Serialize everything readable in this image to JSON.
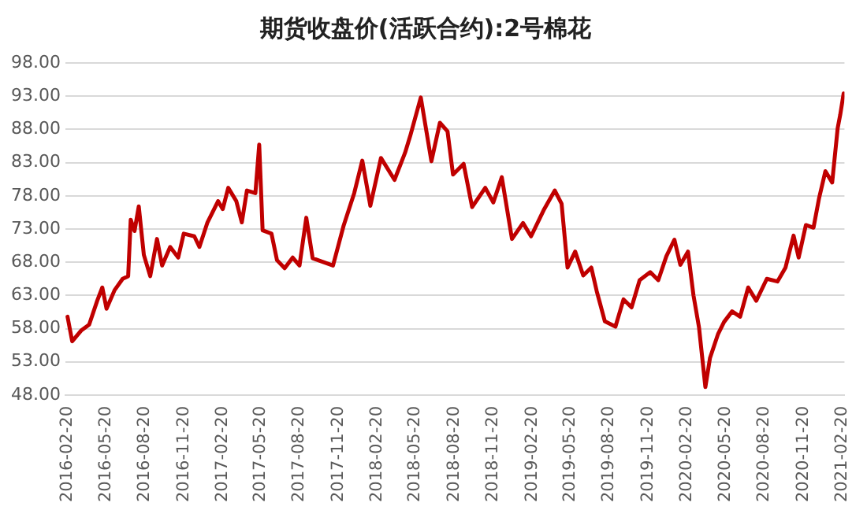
{
  "chart_data": {
    "type": "line",
    "title": "期货收盘价(活跃合约):2号棉花",
    "x": [
      "2016-02-20",
      "2016-03-02",
      "2016-03-23",
      "2016-04-11",
      "2016-04-30",
      "2016-05-12",
      "2016-05-22",
      "2016-06-10",
      "2016-06-29",
      "2016-07-12",
      "2016-07-18",
      "2016-07-27",
      "2016-08-06",
      "2016-08-18",
      "2016-09-02",
      "2016-09-18",
      "2016-09-30",
      "2016-10-19",
      "2016-11-07",
      "2016-11-20",
      "2016-12-15",
      "2016-12-27",
      "2017-01-15",
      "2017-02-09",
      "2017-02-20",
      "2017-03-05",
      "2017-03-24",
      "2017-04-06",
      "2017-04-18",
      "2017-05-08",
      "2017-05-17",
      "2017-05-25",
      "2017-06-15",
      "2017-06-28",
      "2017-07-16",
      "2017-08-04",
      "2017-08-20",
      "2017-09-05",
      "2017-09-20",
      "2017-11-07",
      "2017-12-02",
      "2017-12-27",
      "2018-01-15",
      "2018-02-03",
      "2018-02-28",
      "2018-04-01",
      "2018-04-26",
      "2018-05-08",
      "2018-06-02",
      "2018-06-27",
      "2018-07-17",
      "2018-08-04",
      "2018-08-17",
      "2018-09-11",
      "2018-10-01",
      "2018-11-01",
      "2018-11-20",
      "2018-12-10",
      "2019-01-03",
      "2019-01-29",
      "2019-02-17",
      "2019-03-20",
      "2019-04-14",
      "2019-04-30",
      "2019-05-14",
      "2019-06-01",
      "2019-06-20",
      "2019-07-09",
      "2019-07-22",
      "2019-08-10",
      "2019-09-04",
      "2019-09-23",
      "2019-10-12",
      "2019-10-31",
      "2019-11-25",
      "2019-12-14",
      "2020-01-02",
      "2020-01-21",
      "2020-02-04",
      "2020-02-22",
      "2020-03-06",
      "2020-03-19",
      "2020-04-03",
      "2020-04-14",
      "2020-05-03",
      "2020-05-17",
      "2020-06-05",
      "2020-06-24",
      "2020-07-13",
      "2020-08-01",
      "2020-08-26",
      "2020-09-20",
      "2020-10-09",
      "2020-10-28",
      "2020-11-09",
      "2020-11-26",
      "2020-12-14",
      "2020-12-27",
      "2021-01-11",
      "2021-01-27",
      "2021-02-09",
      "2021-02-15",
      "2021-02-23"
    ],
    "series": [
      {
        "color": "#c00000",
        "values": [
          59.8,
          56.1,
          57.7,
          58.6,
          62.2,
          64.2,
          61,
          63.8,
          65.5,
          65.9,
          74.4,
          72.7,
          76.4,
          69.1,
          65.9,
          71.5,
          67.5,
          70.3,
          68.7,
          72.3,
          71.9,
          70.3,
          74,
          77.2,
          76,
          79.2,
          77.2,
          74,
          78.8,
          78.4,
          85.7,
          72.8,
          72.3,
          68.3,
          67.1,
          68.7,
          67.5,
          74.7,
          68.6,
          67.5,
          73.5,
          78.4,
          83.3,
          76.5,
          83.7,
          80.4,
          84.5,
          87,
          92.8,
          83.2,
          89,
          87.7,
          81.2,
          82.8,
          76.3,
          79.2,
          77,
          80.8,
          71.5,
          73.9,
          71.9,
          76,
          78.8,
          76.8,
          67.2,
          69.6,
          66,
          67.2,
          63.6,
          59.1,
          58.3,
          62.4,
          61.2,
          65.3,
          66.5,
          65.3,
          68.9,
          71.4,
          67.6,
          69.6,
          63,
          58.2,
          49.2,
          53.6,
          57.2,
          59,
          60.6,
          59.8,
          64.2,
          62.2,
          65.5,
          65.1,
          67.2,
          72,
          68.7,
          73.6,
          73.2,
          77.6,
          81.7,
          80,
          88.2,
          90.2,
          93.4
        ]
      }
    ],
    "xlim": [
      "2016-02-15",
      "2021-02-25"
    ],
    "xticks": [
      "2016-02-20",
      "2016-05-20",
      "2016-08-20",
      "2016-11-20",
      "2017-02-20",
      "2017-05-20",
      "2017-08-20",
      "2017-11-20",
      "2018-02-20",
      "2018-05-20",
      "2018-08-20",
      "2018-11-20",
      "2019-02-20",
      "2019-05-20",
      "2019-08-20",
      "2019-11-20",
      "2020-02-20",
      "2020-05-20",
      "2020-08-20",
      "2020-11-20",
      "2021-02-20"
    ],
    "ylim": [
      48,
      98
    ],
    "yticks": [
      {
        "value": 48,
        "label": "48.00"
      },
      {
        "value": 53,
        "label": "53.00"
      },
      {
        "value": 58,
        "label": "58.00"
      },
      {
        "value": 63,
        "label": "63.00"
      },
      {
        "value": 68,
        "label": "68.00"
      },
      {
        "value": 73,
        "label": "73.00"
      },
      {
        "value": 78,
        "label": "78.00"
      },
      {
        "value": 83,
        "label": "83.00"
      },
      {
        "value": 88,
        "label": "88.00"
      },
      {
        "value": 93,
        "label": "93.00"
      },
      {
        "value": 98,
        "label": "98.00"
      }
    ],
    "grid": "y",
    "legend": false,
    "marker": "none",
    "line_style": "solid"
  }
}
